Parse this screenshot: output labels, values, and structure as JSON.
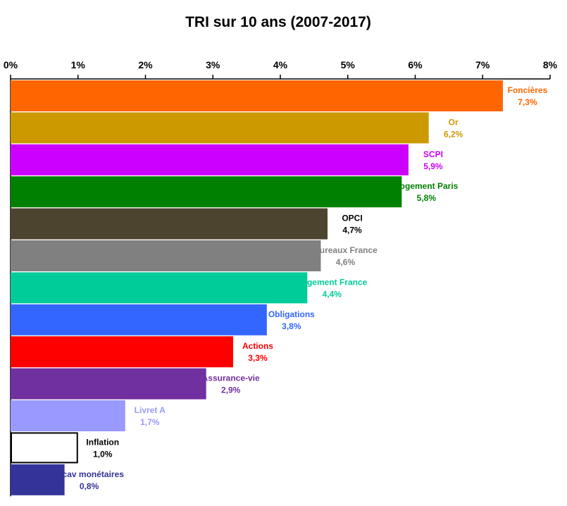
{
  "chart_data": {
    "type": "bar",
    "orientation": "horizontal",
    "title": "TRI sur 10 ans (2007-2017)",
    "xlim": [
      0,
      8
    ],
    "x_ticks": [
      0,
      1,
      2,
      3,
      4,
      5,
      6,
      7,
      8
    ],
    "x_tick_labels": [
      "0%",
      "1%",
      "2%",
      "3%",
      "4%",
      "5%",
      "6%",
      "7%",
      "8%"
    ],
    "axis_position": "top",
    "grid": false,
    "legend": "none",
    "bars": [
      {
        "category": "Foncières",
        "value": 7.3,
        "value_label": "7,3%",
        "color": "#ff6600",
        "label_color": "#ff6600"
      },
      {
        "category": "Or",
        "value": 6.2,
        "value_label": "6,2%",
        "color": "#cc9900",
        "label_color": "#cc9900"
      },
      {
        "category": "SCPI",
        "value": 5.9,
        "value_label": "5,9%",
        "color": "#cc00ff",
        "label_color": "#cc00ff"
      },
      {
        "category": "Logement Paris",
        "value": 5.8,
        "value_label": "5,8%",
        "color": "#008000",
        "label_color": "#008000"
      },
      {
        "category": "OPCI",
        "value": 4.7,
        "value_label": "4,7%",
        "color": "#4d4430",
        "label_color": "#000000"
      },
      {
        "category": "Bureaux France",
        "value": 4.6,
        "value_label": "4,6%",
        "color": "#808080",
        "label_color": "#808080"
      },
      {
        "category": "Logement France",
        "value": 4.4,
        "value_label": "4,4%",
        "color": "#00cc99",
        "label_color": "#00cc99"
      },
      {
        "category": "Obligations",
        "value": 3.8,
        "value_label": "3,8%",
        "color": "#3366ff",
        "label_color": "#3366ff"
      },
      {
        "category": "Actions",
        "value": 3.3,
        "value_label": "3,3%",
        "color": "#ff0000",
        "label_color": "#ff0000"
      },
      {
        "category": "Assurance-vie",
        "value": 2.9,
        "value_label": "2,9%",
        "color": "#7030a0",
        "label_color": "#7030a0"
      },
      {
        "category": "Livret A",
        "value": 1.7,
        "value_label": "1,7%",
        "color": "#9999ff",
        "label_color": "#9999ff"
      },
      {
        "category": "Inflation",
        "value": 1.0,
        "value_label": "1,0%",
        "color": "#ffffff",
        "label_color": "#000000",
        "outlined": true
      },
      {
        "category": "Sicav monétaires",
        "value": 0.8,
        "value_label": "0,8%",
        "color": "#333399",
        "label_color": "#333399"
      }
    ]
  }
}
